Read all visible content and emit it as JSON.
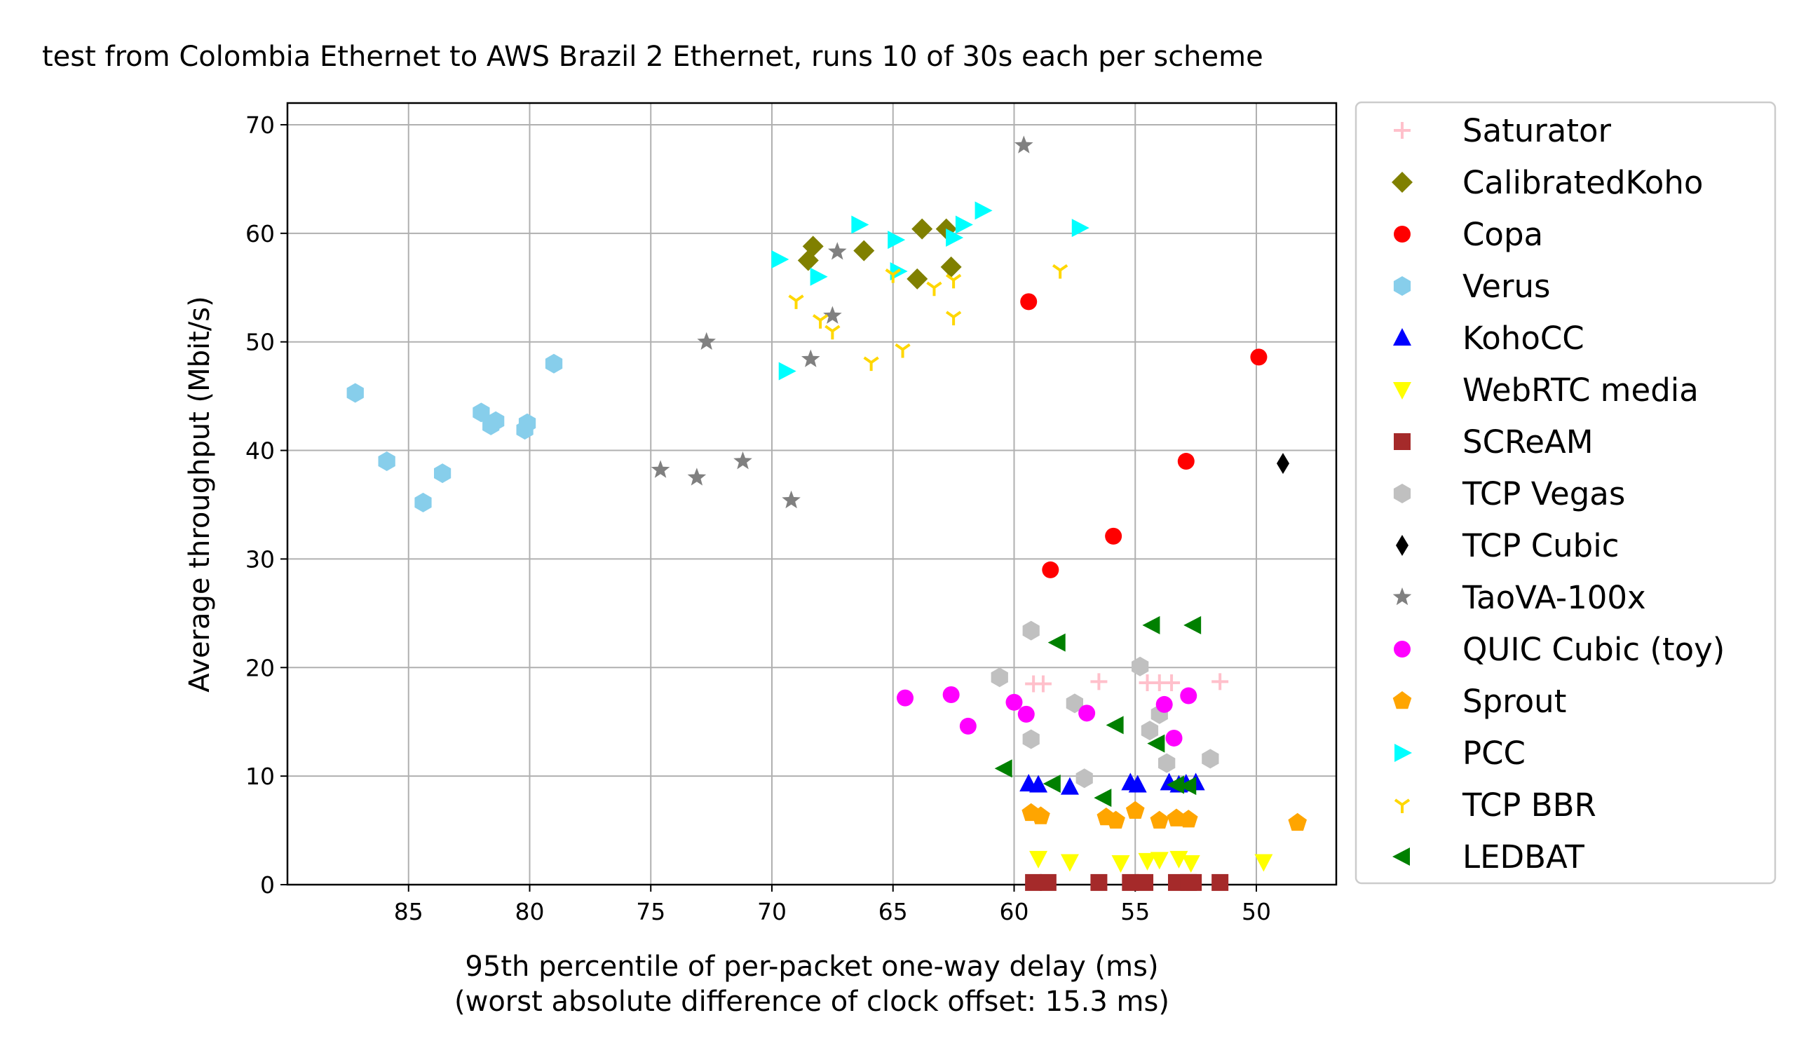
{
  "chart_data": {
    "type": "scatter",
    "title": "test from Colombia Ethernet to AWS Brazil 2 Ethernet, runs 10 of 30s each per scheme",
    "xlabel": "95th percentile of per-packet one-way delay (ms)",
    "xlabel2": "(worst absolute difference of clock offset: 15.3 ms)",
    "ylabel": "Average throughput (Mbit/s)",
    "x_inverted": true,
    "xlim": [
      90,
      46.7
    ],
    "ylim": [
      0,
      72
    ],
    "grid": true,
    "legend_position": "outside-right",
    "xticks": [
      85,
      80,
      75,
      70,
      65,
      60,
      55,
      50
    ],
    "yticks": [
      0,
      10,
      20,
      30,
      40,
      50,
      60,
      70
    ],
    "series": [
      {
        "name": "Saturator",
        "marker": "plus",
        "color": "#ffc0cb",
        "points": [
          [
            59.2,
            18.5
          ],
          [
            58.8,
            18.5
          ],
          [
            56.5,
            18.7
          ],
          [
            54.5,
            18.6
          ],
          [
            54.0,
            18.6
          ],
          [
            53.5,
            18.6
          ],
          [
            51.5,
            18.7
          ]
        ]
      },
      {
        "name": "CalibratedKoho",
        "marker": "diamond",
        "color": "#808000",
        "points": [
          [
            68.3,
            58.8
          ],
          [
            68.5,
            57.5
          ],
          [
            66.2,
            58.4
          ],
          [
            63.8,
            60.4
          ],
          [
            62.8,
            60.4
          ],
          [
            64.0,
            55.8
          ],
          [
            62.6,
            56.9
          ]
        ]
      },
      {
        "name": "Copa",
        "marker": "circle",
        "color": "#ff0000",
        "points": [
          [
            59.4,
            53.7
          ],
          [
            49.9,
            48.6
          ],
          [
            52.9,
            39.0
          ],
          [
            55.9,
            32.1
          ],
          [
            58.5,
            29.0
          ]
        ]
      },
      {
        "name": "Verus",
        "marker": "hexagon",
        "color": "#87ceeb",
        "points": [
          [
            87.2,
            45.3
          ],
          [
            85.9,
            39.0
          ],
          [
            84.4,
            35.2
          ],
          [
            83.6,
            37.9
          ],
          [
            82.0,
            43.5
          ],
          [
            81.6,
            42.3
          ],
          [
            81.4,
            42.7
          ],
          [
            80.2,
            41.9
          ],
          [
            80.1,
            42.5
          ],
          [
            79.0,
            48.0
          ]
        ]
      },
      {
        "name": "KohoCC",
        "marker": "triangle-up",
        "color": "#0000ff",
        "points": [
          [
            59.4,
            9.3
          ],
          [
            59.0,
            9.2
          ],
          [
            57.7,
            9.0
          ],
          [
            55.2,
            9.4
          ],
          [
            54.9,
            9.2
          ],
          [
            53.6,
            9.4
          ],
          [
            53.2,
            9.2
          ],
          [
            52.9,
            9.3
          ],
          [
            52.5,
            9.4
          ]
        ]
      },
      {
        "name": "WebRTC media",
        "marker": "triangle-down",
        "color": "#ffff00",
        "points": [
          [
            59.0,
            2.4
          ],
          [
            57.7,
            2.1
          ],
          [
            55.6,
            2.0
          ],
          [
            54.5,
            2.2
          ],
          [
            54.0,
            2.3
          ],
          [
            53.2,
            2.4
          ],
          [
            52.7,
            2.0
          ],
          [
            49.7,
            2.1
          ]
        ]
      },
      {
        "name": "SCReAM",
        "marker": "square",
        "color": "#a52a2a",
        "points": [
          [
            59.2,
            0.2
          ],
          [
            58.6,
            0.2
          ],
          [
            56.5,
            0.2
          ],
          [
            55.2,
            0.2
          ],
          [
            54.6,
            0.2
          ],
          [
            53.3,
            0.2
          ],
          [
            52.8,
            0.2
          ],
          [
            52.6,
            0.2
          ],
          [
            51.5,
            0.2
          ]
        ]
      },
      {
        "name": "TCP Vegas",
        "marker": "hexagon",
        "color": "#c0c0c0",
        "points": [
          [
            60.6,
            19.1
          ],
          [
            59.3,
            23.4
          ],
          [
            59.3,
            13.4
          ],
          [
            57.5,
            16.7
          ],
          [
            57.1,
            9.8
          ],
          [
            54.8,
            20.1
          ],
          [
            54.4,
            14.2
          ],
          [
            54.0,
            15.7
          ],
          [
            53.7,
            11.2
          ],
          [
            51.9,
            11.6
          ]
        ]
      },
      {
        "name": "TCP Cubic",
        "marker": "thin-diamond",
        "color": "#000000",
        "points": [
          [
            48.9,
            38.8
          ]
        ]
      },
      {
        "name": "TaoVA-100x",
        "marker": "star",
        "color": "#808080",
        "points": [
          [
            59.6,
            68.1
          ],
          [
            72.7,
            50.0
          ],
          [
            68.4,
            48.4
          ],
          [
            67.5,
            52.4
          ],
          [
            67.3,
            58.3
          ],
          [
            74.6,
            38.2
          ],
          [
            73.1,
            37.5
          ],
          [
            71.2,
            39.0
          ],
          [
            69.2,
            35.4
          ]
        ]
      },
      {
        "name": "QUIC Cubic (toy)",
        "marker": "circle",
        "color": "#ff00ff",
        "points": [
          [
            64.5,
            17.2
          ],
          [
            62.6,
            17.5
          ],
          [
            61.9,
            14.6
          ],
          [
            60.0,
            16.8
          ],
          [
            59.5,
            15.7
          ],
          [
            57.0,
            15.8
          ],
          [
            53.8,
            16.6
          ],
          [
            53.4,
            13.5
          ],
          [
            52.8,
            17.4
          ]
        ]
      },
      {
        "name": "Sprout",
        "marker": "pentagon",
        "color": "#ffa500",
        "points": [
          [
            59.3,
            6.6
          ],
          [
            58.9,
            6.3
          ],
          [
            56.2,
            6.2
          ],
          [
            55.8,
            5.9
          ],
          [
            55.0,
            6.8
          ],
          [
            54.0,
            5.9
          ],
          [
            53.3,
            6.1
          ],
          [
            52.8,
            6.0
          ],
          [
            48.3,
            5.7
          ]
        ]
      },
      {
        "name": "PCC",
        "marker": "triangle-right",
        "color": "#00ffff",
        "points": [
          [
            69.7,
            57.6
          ],
          [
            69.4,
            47.3
          ],
          [
            68.1,
            56.0
          ],
          [
            66.4,
            60.8
          ],
          [
            64.9,
            59.4
          ],
          [
            64.8,
            56.5
          ],
          [
            62.5,
            59.6
          ],
          [
            62.1,
            60.8
          ],
          [
            61.3,
            62.1
          ],
          [
            57.3,
            60.5
          ]
        ]
      },
      {
        "name": "TCP BBR",
        "marker": "tri-down",
        "color": "#ffd700",
        "points": [
          [
            69.0,
            53.8
          ],
          [
            68.0,
            52.0
          ],
          [
            67.5,
            51.0
          ],
          [
            65.9,
            48.1
          ],
          [
            64.6,
            49.3
          ],
          [
            65.0,
            56.2
          ],
          [
            63.3,
            55.0
          ],
          [
            62.5,
            55.7
          ],
          [
            62.5,
            52.3
          ],
          [
            58.1,
            56.6
          ]
        ]
      },
      {
        "name": "LEDBAT",
        "marker": "triangle-left",
        "color": "#008000",
        "points": [
          [
            60.4,
            10.7
          ],
          [
            58.2,
            22.3
          ],
          [
            58.4,
            9.3
          ],
          [
            56.3,
            8.0
          ],
          [
            55.8,
            14.7
          ],
          [
            54.3,
            23.9
          ],
          [
            54.1,
            13.0
          ],
          [
            53.3,
            9.2
          ],
          [
            52.8,
            9.1
          ],
          [
            52.6,
            23.9
          ]
        ]
      }
    ]
  }
}
